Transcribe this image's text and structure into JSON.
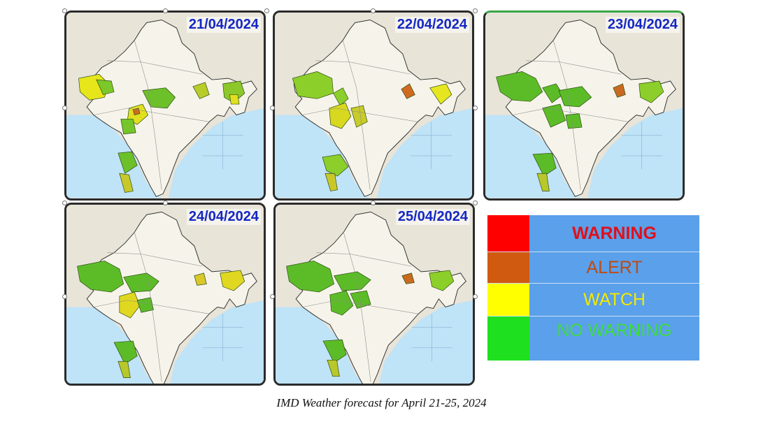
{
  "maps": [
    {
      "date": "21/04/2024"
    },
    {
      "date": "22/04/2024"
    },
    {
      "date": "23/04/2024"
    },
    {
      "date": "24/04/2024"
    },
    {
      "date": "25/04/2024"
    }
  ],
  "legend": [
    {
      "label": "WARNING",
      "swatch_color": "#ff0000",
      "text_color": "#e0101a"
    },
    {
      "label": "ALERT",
      "swatch_color": "#d05a10",
      "text_color": "#c04a10"
    },
    {
      "label": "WATCH",
      "swatch_color": "#ffff00",
      "text_color": "#f2ea00"
    },
    {
      "label": "NO WARNING",
      "swatch_color": "#1fe01f",
      "text_color": "#3edc3e"
    }
  ],
  "caption": "IMD Weather forecast for April 21-25, 2024"
}
